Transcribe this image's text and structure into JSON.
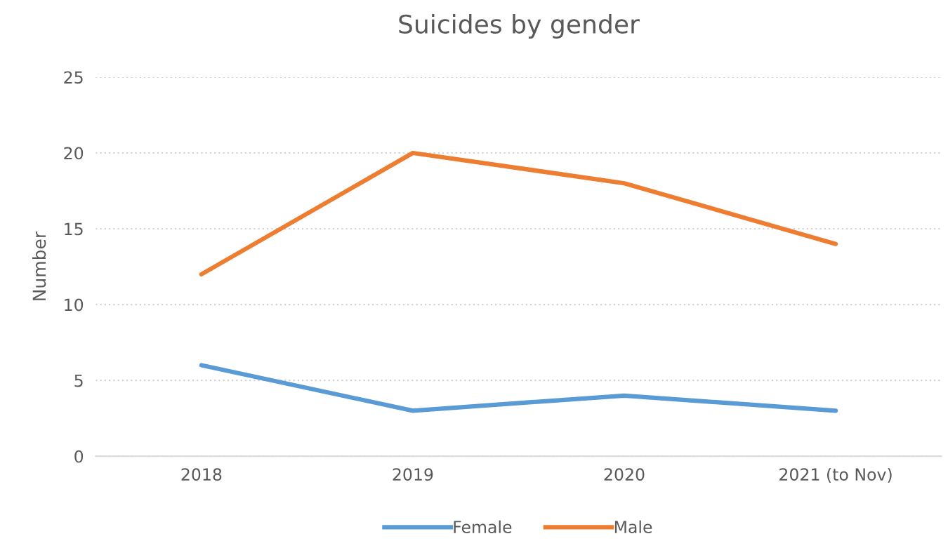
{
  "chart_data": {
    "type": "line",
    "title": "Suicides by gender",
    "ylabel": "Number",
    "categories": [
      "2018",
      "2019",
      "2020",
      "2021 (to Nov)"
    ],
    "series": [
      {
        "name": "Female",
        "color": "#5b9bd5",
        "values": [
          6,
          3,
          4,
          3
        ]
      },
      {
        "name": "Male",
        "color": "#ed7d31",
        "values": [
          12,
          20,
          18,
          14
        ]
      }
    ],
    "ylim": [
      0,
      25
    ],
    "yticks": [
      0,
      5,
      10,
      15,
      20,
      25
    ],
    "grid": "y",
    "legend": "bottom",
    "marker": "none",
    "line_style": "solid"
  }
}
